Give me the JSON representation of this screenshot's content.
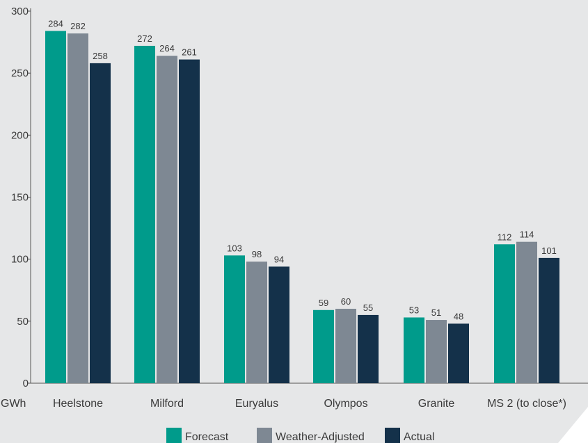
{
  "chart_data": {
    "type": "bar",
    "unit_label": "GWh",
    "categories": [
      "Heelstone",
      "Milford",
      "Euryalus",
      "Olympos",
      "Granite",
      "MS 2 (to close*)"
    ],
    "series": [
      {
        "name": "Forecast",
        "color": "#009b8b",
        "values": [
          284,
          272,
          103,
          59,
          53,
          112
        ]
      },
      {
        "name": "Weather-Adjusted",
        "color": "#7e8893",
        "values": [
          282,
          264,
          98,
          60,
          51,
          114
        ]
      },
      {
        "name": "Actual",
        "color": "#14314a",
        "values": [
          258,
          261,
          94,
          55,
          48,
          101
        ]
      }
    ],
    "ylim": [
      0,
      300
    ],
    "yticks": [
      0,
      50,
      100,
      150,
      200,
      250,
      300
    ],
    "grid": false,
    "legend_position": "bottom",
    "background_color": "#e6e7e8"
  }
}
